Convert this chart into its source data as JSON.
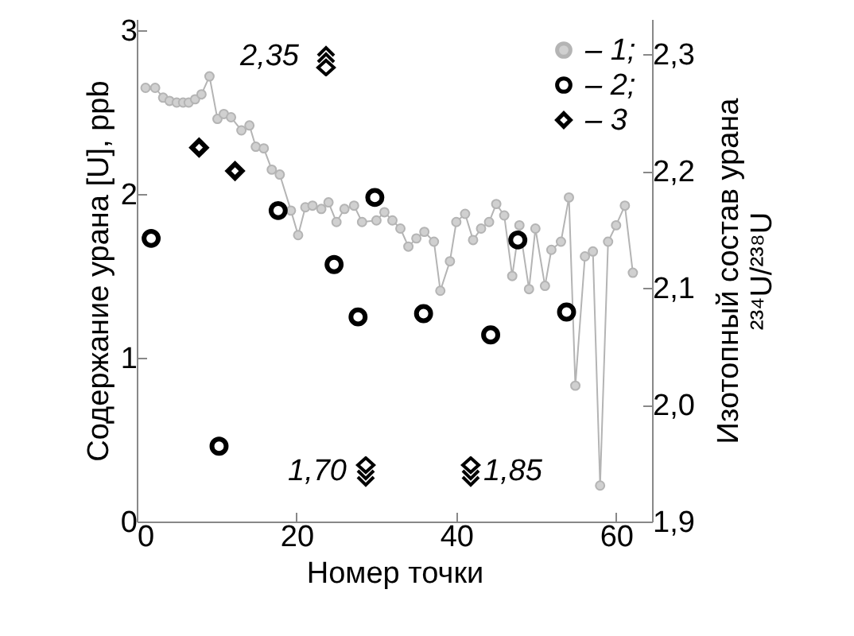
{
  "chart_data": {
    "type": "scatter",
    "xlabel": "Номер точки",
    "ylabel": "Содержание урана [U], ppb",
    "y2label": "Изотопный состав урана\n²³⁴U/²³⁸U",
    "xlim": [
      0,
      64.5
    ],
    "xticks": [
      0,
      20,
      40,
      60
    ],
    "ylim": [
      0,
      3.07
    ],
    "yticks": [
      0,
      1,
      2,
      3
    ],
    "y2lim": [
      1.9,
      2.33
    ],
    "y2ticks": [
      {
        "value": 1.9,
        "label": "1,9"
      },
      {
        "value": 2.0,
        "label": "2,0"
      },
      {
        "value": 2.1,
        "label": "2,1"
      },
      {
        "value": 2.2,
        "label": "2,2"
      },
      {
        "value": 2.3,
        "label": "2,3"
      }
    ],
    "grid": false,
    "legend": "top right",
    "series": [
      {
        "name": "– 1;",
        "type": "line",
        "color": "#b4b4b4",
        "marker": "circle",
        "line_style": "solid",
        "x": [
          1.1,
          2.3,
          3.3,
          4.1,
          5.0,
          5.8,
          6.5,
          7.3,
          8.1,
          9.1,
          10.1,
          10.9,
          11.8,
          13.1,
          14.1,
          14.9,
          15.9,
          16.9,
          17.9,
          19.3,
          20.2,
          21.1,
          22.0,
          23.1,
          24.0,
          25.0,
          26.0,
          27.2,
          28.2,
          30.0,
          31.0,
          32.0,
          33.0,
          34.0,
          35.0,
          36.0,
          37.2,
          38.0,
          39.2,
          40.0,
          41.1,
          42.1,
          43.1,
          44.1,
          45.0,
          46.0,
          47.0,
          47.9,
          49.1,
          49.9,
          51.1,
          51.9,
          53.1,
          54.1,
          54.9,
          56.1,
          57.1,
          58.0,
          59.0,
          60.0,
          61.1,
          62.1
        ],
        "values": [
          2.65,
          2.65,
          2.59,
          2.57,
          2.56,
          2.56,
          2.56,
          2.58,
          2.61,
          2.72,
          2.46,
          2.49,
          2.47,
          2.39,
          2.42,
          2.29,
          2.28,
          2.15,
          2.12,
          1.9,
          1.75,
          1.92,
          1.93,
          1.91,
          1.95,
          1.83,
          1.91,
          1.93,
          1.83,
          1.84,
          1.89,
          1.84,
          1.79,
          1.68,
          1.73,
          1.77,
          1.71,
          1.41,
          1.59,
          1.83,
          1.88,
          1.72,
          1.79,
          1.83,
          1.94,
          1.87,
          1.5,
          1.81,
          1.42,
          1.79,
          1.44,
          1.66,
          1.71,
          1.98,
          0.83,
          1.62,
          1.65,
          0.22,
          1.71,
          1.81,
          1.93,
          1.52
        ]
      },
      {
        "name": "– 2;",
        "color": "#000000",
        "marker": "circle",
        "x": [
          1.8,
          10.3,
          17.7,
          24.7,
          27.7,
          29.8,
          35.9,
          44.3,
          47.7,
          53.8
        ],
        "values": [
          1.73,
          0.46,
          1.9,
          1.57,
          1.25,
          1.98,
          1.27,
          1.14,
          1.72,
          1.28
        ]
      },
      {
        "name": "– 3",
        "color": "#000000",
        "marker": "diamond",
        "axis": "y2",
        "x": [
          7.8,
          12.3
        ],
        "values": [
          2.22,
          2.2
        ]
      }
    ],
    "annotations": [
      "2,35",
      "1,70",
      "1,85"
    ]
  }
}
